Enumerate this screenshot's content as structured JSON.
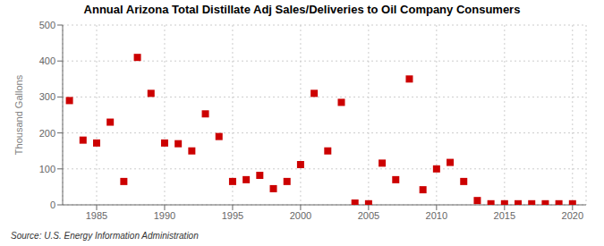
{
  "chart_data": {
    "type": "scatter",
    "title": "Annual Arizona Total Distillate Adj Sales/Deliveries to Oil Company Consumers",
    "ylabel": "Thousand Gallons",
    "annotation": "Source: U.S. Energy Information Administration",
    "x": [
      1983,
      1984,
      1985,
      1986,
      1987,
      1988,
      1989,
      1990,
      1991,
      1992,
      1993,
      1994,
      1995,
      1996,
      1997,
      1998,
      1999,
      2000,
      2001,
      2002,
      2003,
      2004,
      2005,
      2006,
      2007,
      2008,
      2009,
      2010,
      2011,
      2012,
      2013,
      2014,
      2015,
      2016,
      2017,
      2018,
      2019,
      2020
    ],
    "values": [
      290,
      180,
      172,
      230,
      65,
      410,
      310,
      172,
      170,
      150,
      253,
      190,
      65,
      70,
      82,
      45,
      65,
      112,
      310,
      150,
      285,
      5,
      3,
      116,
      70,
      350,
      42,
      100,
      118,
      65,
      12,
      3,
      3,
      3,
      3,
      3,
      3,
      3
    ],
    "xlim": [
      1982.5,
      2021
    ],
    "ylim": [
      0,
      500
    ],
    "xticks": [
      1985,
      1990,
      1995,
      2000,
      2005,
      2010,
      2015,
      2020
    ],
    "yticks": [
      0,
      100,
      200,
      300,
      400,
      500
    ],
    "color": "#cc0000",
    "marker": "square",
    "grid": true
  }
}
